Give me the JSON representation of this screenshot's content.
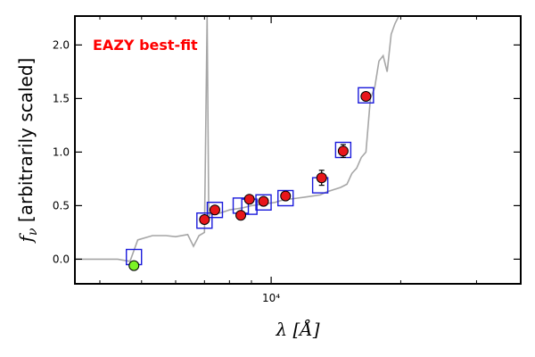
{
  "chart_data": {
    "type": "scatter",
    "xscale": "log",
    "xlim": [
      3500,
      38000
    ],
    "ylim": [
      -0.23,
      2.27
    ],
    "x_ticks": [
      {
        "value": 10000,
        "label": "10⁴"
      }
    ],
    "y_ticks": [
      {
        "value": 0.0,
        "label": "0.0"
      },
      {
        "value": 0.5,
        "label": "0.5"
      },
      {
        "value": 1.0,
        "label": "1.0"
      },
      {
        "value": 1.5,
        "label": "1.5"
      },
      {
        "value": 2.0,
        "label": "2.0"
      }
    ],
    "xlabel": "λ [Å]",
    "ylabel": "f_ν [arbitrarily scaled]",
    "annotation": "EAZY best-fit",
    "grid": false,
    "colors": {
      "model": "#a6a6a6",
      "model_photometry": "#1a1adb",
      "detection": "#e8161b",
      "non_detection": "#7cf226",
      "annotation": "#ff0000"
    },
    "series": [
      {
        "kind": "line",
        "color": "#a6a6a6",
        "x": [
          3500,
          4400,
          4700,
          4900,
          5300,
          5700,
          6000,
          6400,
          6600,
          6800,
          7000,
          7100,
          7160,
          7180,
          7220,
          7300,
          7600,
          8000,
          8300,
          8600,
          9000,
          9400,
          9800,
          10200,
          10600,
          11000,
          11500,
          12000,
          12500,
          13000,
          13500,
          14000,
          14500,
          15000,
          15400,
          15800,
          16200,
          16600,
          17000,
          17400,
          17800,
          18200,
          18600,
          19000,
          19400,
          19800,
          20200
        ],
        "y": [
          0.0,
          0.0,
          -0.02,
          0.18,
          0.22,
          0.22,
          0.21,
          0.23,
          0.12,
          0.22,
          0.25,
          2.27,
          0.42,
          0.4,
          0.42,
          0.44,
          0.43,
          0.46,
          0.47,
          0.48,
          0.5,
          0.51,
          0.52,
          0.53,
          0.55,
          0.56,
          0.57,
          0.58,
          0.59,
          0.6,
          0.63,
          0.65,
          0.67,
          0.7,
          0.8,
          0.85,
          0.95,
          1.0,
          1.5,
          1.6,
          1.85,
          1.9,
          1.75,
          2.1,
          2.2,
          2.27,
          2.27
        ]
      },
      {
        "kind": "points",
        "marker": "open-square",
        "color": "#1a1adb",
        "x": [
          4800,
          7000,
          7400,
          8500,
          8900,
          9600,
          10800,
          13000,
          14700,
          16600
        ],
        "y": [
          0.02,
          0.36,
          0.46,
          0.5,
          0.49,
          0.53,
          0.57,
          0.69,
          1.02,
          1.53
        ]
      },
      {
        "kind": "points",
        "marker": "filled-circle",
        "color": "#e8161b",
        "x": [
          7000,
          7400,
          8500,
          8900,
          9600,
          10800,
          13100,
          14700,
          16600
        ],
        "y": [
          0.37,
          0.46,
          0.41,
          0.56,
          0.54,
          0.59,
          0.76,
          1.01,
          1.52
        ],
        "yerr": [
          0.02,
          0.02,
          0.02,
          0.02,
          0.02,
          0.02,
          0.07,
          0.06,
          0.03
        ]
      },
      {
        "kind": "points",
        "marker": "filled-circle",
        "color": "#7cf226",
        "x": [
          4800
        ],
        "y": [
          -0.06
        ]
      }
    ]
  }
}
